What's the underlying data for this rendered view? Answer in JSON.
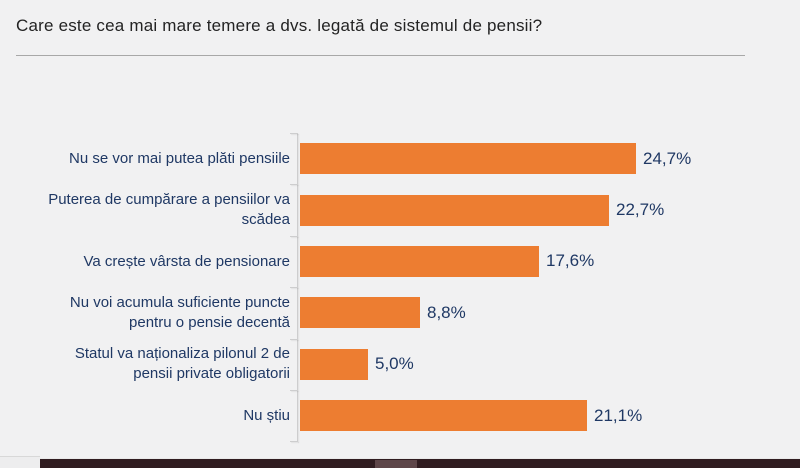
{
  "page": {
    "title": "Care este cea mai mare temere a dvs. legată de sistemul de pensii?"
  },
  "colors": {
    "background": "#F1F1F2",
    "bar": "#ED7D31",
    "label_text": "#1F3864",
    "title_text": "#232323",
    "axis": "#CDCDCE",
    "title_rule": "#A8A8A8",
    "bottom_bar": "#301C20",
    "scrollbar_thumb": "#5E4649"
  },
  "chart_data": {
    "type": "bar",
    "orientation": "horizontal",
    "title": "Care este cea mai mare temere a dvs. legată de sistemul de pensii?",
    "categories": [
      "Nu se vor mai putea plăti pensiile",
      "Puterea de cumpărare a pensiilor va scădea",
      "Va crește vârsta de pensionare",
      "Nu voi acumula suficiente puncte pentru o pensie decentă",
      "Statul va naționaliza pilonul 2 de pensii private obligatorii",
      "Nu știu"
    ],
    "values": [
      24.7,
      22.7,
      17.6,
      8.8,
      5.0,
      21.1
    ],
    "value_labels": [
      "24,7%",
      "22,7%",
      "17,6%",
      "8,8%",
      "5,0%",
      "21,1%"
    ],
    "xlabel": "",
    "ylabel": "",
    "xlim": [
      0,
      25.7
    ],
    "grid": false,
    "legend": null,
    "data_labels": "outside-end",
    "bar_color": "#ED7D31"
  }
}
